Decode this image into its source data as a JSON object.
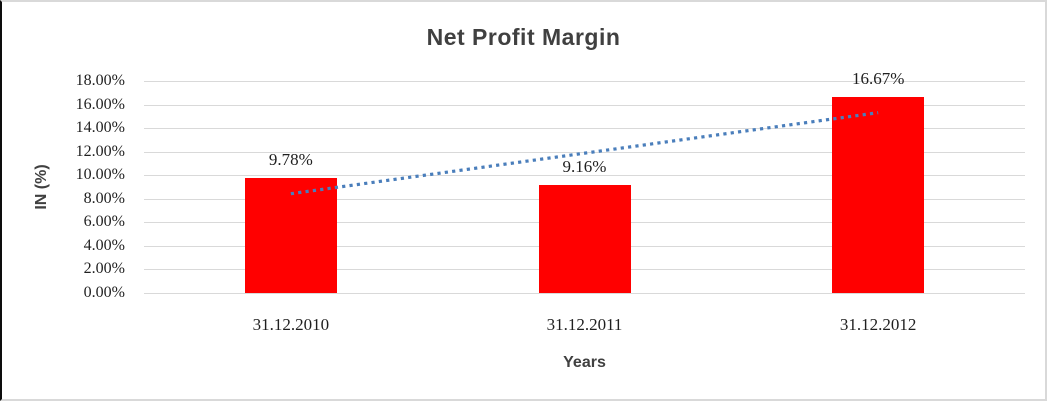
{
  "chart_data": {
    "type": "bar",
    "title": "Net Profit Margin",
    "xlabel": "Years",
    "ylabel": "IN (%)",
    "categories": [
      "31.12.2010",
      "31.12.2011",
      "31.12.2012"
    ],
    "values": [
      9.78,
      9.16,
      16.67
    ],
    "data_labels": [
      "9.78%",
      "9.16%",
      "16.67%"
    ],
    "y_ticks": [
      {
        "value": 0,
        "label": "0.00%"
      },
      {
        "value": 2,
        "label": "2.00%"
      },
      {
        "value": 4,
        "label": "4.00%"
      },
      {
        "value": 6,
        "label": "6.00%"
      },
      {
        "value": 8,
        "label": "8.00%"
      },
      {
        "value": 10,
        "label": "10.00%"
      },
      {
        "value": 12,
        "label": "12.00%"
      },
      {
        "value": 14,
        "label": "14.00%"
      },
      {
        "value": 16,
        "label": "16.00%"
      },
      {
        "value": 18,
        "label": "18.00%"
      }
    ],
    "ylim": [
      0,
      18
    ],
    "grid": true,
    "legend": "none",
    "colors": {
      "bar": "#ff0000",
      "gridline": "#d9d9d9",
      "trendline": "#4a7ebb",
      "text_dark": "#1f1f1f",
      "text_title": "#404040"
    },
    "trendline": {
      "type": "linear",
      "style": "dotted",
      "color": "#4a7ebb",
      "start_value": 8.43,
      "end_value": 15.31
    }
  }
}
